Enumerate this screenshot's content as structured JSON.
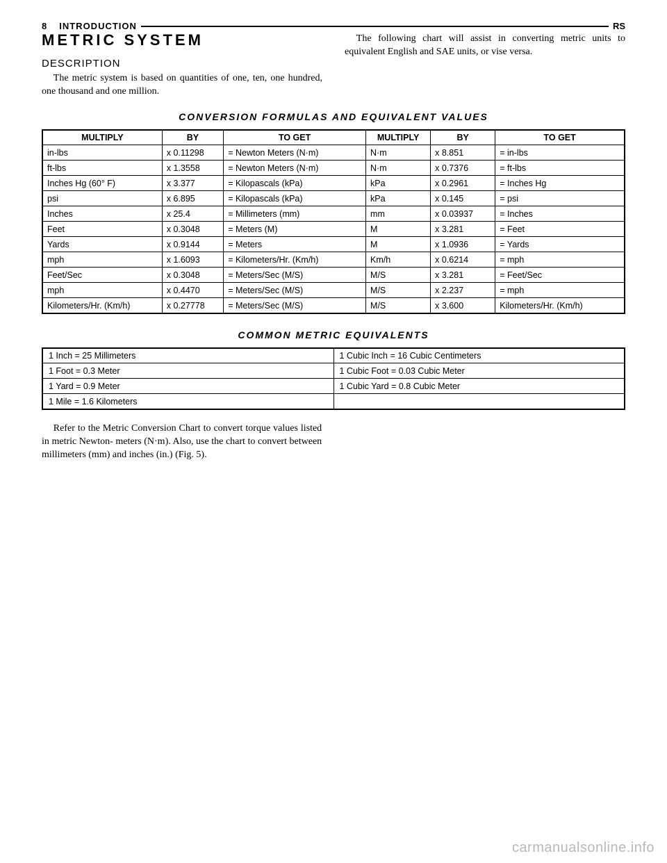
{
  "header": {
    "page_number": "8",
    "section": "INTRODUCTION",
    "code": "RS"
  },
  "title": "METRIC SYSTEM",
  "subtitle": "DESCRIPTION",
  "intro_left": "The metric system is based on quantities of one, ten, one hundred, one thousand and one million.",
  "intro_right": "The following chart will assist in converting metric units to equivalent English and SAE units, or vise versa.",
  "table1_title": "CONVERSION FORMULAS AND EQUIVALENT VALUES",
  "table1_headers": [
    "MULTIPLY",
    "BY",
    "TO GET",
    "MULTIPLY",
    "BY",
    "TO GET"
  ],
  "table1_rows": [
    [
      "in-lbs",
      "x 0.11298",
      "= Newton Meters (N·m)",
      "N·m",
      "x 8.851",
      "= in-lbs"
    ],
    [
      "ft-lbs",
      "x 1.3558",
      "= Newton Meters (N·m)",
      "N·m",
      "x 0.7376",
      "= ft-lbs"
    ],
    [
      "Inches Hg (60° F)",
      "x 3.377",
      "= Kilopascals (kPa)",
      "kPa",
      "x 0.2961",
      "= Inches Hg"
    ],
    [
      "psi",
      "x 6.895",
      "= Kilopascals (kPa)",
      "kPa",
      "x 0.145",
      "= psi"
    ],
    [
      "Inches",
      "x 25.4",
      "= Millimeters (mm)",
      "mm",
      "x 0.03937",
      "= Inches"
    ],
    [
      "Feet",
      "x 0.3048",
      "= Meters (M)",
      "M",
      "x 3.281",
      "= Feet"
    ],
    [
      "Yards",
      "x 0.9144",
      "= Meters",
      "M",
      "x 1.0936",
      "= Yards"
    ],
    [
      "mph",
      "x 1.6093",
      "= Kilometers/Hr. (Km/h)",
      "Km/h",
      "x 0.6214",
      "= mph"
    ],
    [
      "Feet/Sec",
      "x 0.3048",
      "= Meters/Sec (M/S)",
      "M/S",
      "x 3.281",
      "= Feet/Sec"
    ],
    [
      "mph",
      "x 0.4470",
      "= Meters/Sec (M/S)",
      "M/S",
      "x 2.237",
      "= mph"
    ],
    [
      "Kilometers/Hr. (Km/h)",
      "x 0.27778",
      "= Meters/Sec (M/S)",
      "M/S",
      "x 3.600",
      "Kilometers/Hr. (Km/h)"
    ]
  ],
  "table2_title": "COMMON METRIC EQUIVALENTS",
  "table2_rows": [
    [
      "1 Inch = 25 Millimeters",
      "1 Cubic Inch = 16 Cubic Centimeters"
    ],
    [
      "1 Foot = 0.3 Meter",
      "1 Cubic Foot = 0.03 Cubic Meter"
    ],
    [
      "1 Yard = 0.9 Meter",
      "1 Cubic Yard = 0.8 Cubic Meter"
    ],
    [
      "1 Mile = 1.6 Kilometers",
      ""
    ]
  ],
  "after_text": "Refer to the Metric Conversion Chart to convert torque values listed in metric Newton- meters (N·m). Also, use the chart to convert between millimeters (mm) and inches (in.) (Fig. 5).",
  "watermark": "carmanualsonline.info"
}
